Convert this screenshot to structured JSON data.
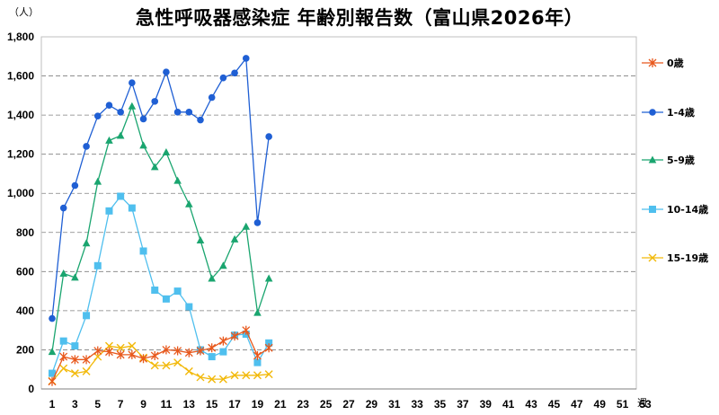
{
  "chart_data": {
    "type": "line",
    "title": "急性呼吸器感染症 年齢別報告数（富山県2026年）",
    "ylabel": "（人）",
    "xlabel": "週",
    "ylim": [
      0,
      1800
    ],
    "yticks": [
      0,
      200,
      400,
      600,
      800,
      1000,
      1200,
      1400,
      1600,
      1800
    ],
    "ytick_labels": [
      "0",
      "200",
      "400",
      "600",
      "800",
      "1,000",
      "1,200",
      "1,400",
      "1,600",
      "1,800"
    ],
    "xlim": [
      1,
      53
    ],
    "xticks": [
      1,
      3,
      5,
      7,
      9,
      11,
      13,
      15,
      17,
      19,
      21,
      23,
      25,
      27,
      29,
      31,
      33,
      35,
      37,
      39,
      41,
      43,
      45,
      47,
      49,
      51,
      53
    ],
    "xtick_labels": [
      "1",
      "3",
      "5",
      "7",
      "9",
      "11",
      "13",
      "15",
      "17",
      "19",
      "21",
      "23",
      "25",
      "27",
      "29",
      "31",
      "33",
      "35",
      "37",
      "39",
      "41",
      "43",
      "45",
      "47",
      "49",
      "51",
      "53"
    ],
    "grid": "horizontal dashed",
    "legend_position": "right",
    "series": [
      {
        "name": "0歳",
        "color": "#e8581c",
        "marker": "asterisk",
        "x": [
          1,
          2,
          3,
          4,
          5,
          6,
          7,
          8,
          9,
          10,
          11,
          12,
          13,
          14,
          15,
          16,
          17,
          18,
          19,
          20
        ],
        "values": [
          38,
          165,
          150,
          150,
          195,
          190,
          175,
          175,
          155,
          170,
          200,
          195,
          185,
          195,
          210,
          245,
          270,
          300,
          170,
          210
        ]
      },
      {
        "name": "1-4歳",
        "color": "#1f5fd4",
        "marker": "circle",
        "x": [
          1,
          2,
          3,
          4,
          5,
          6,
          7,
          8,
          9,
          10,
          11,
          12,
          13,
          14,
          15,
          16,
          17,
          18,
          19,
          20
        ],
        "values": [
          360,
          925,
          1040,
          1240,
          1395,
          1450,
          1415,
          1565,
          1380,
          1470,
          1620,
          1415,
          1415,
          1375,
          1490,
          1590,
          1615,
          1690,
          850,
          1290
        ]
      },
      {
        "name": "5-9歳",
        "color": "#1aa56f",
        "marker": "triangle",
        "x": [
          1,
          2,
          3,
          4,
          5,
          6,
          7,
          8,
          9,
          10,
          11,
          12,
          13,
          14,
          15,
          16,
          17,
          18,
          19,
          20
        ],
        "values": [
          190,
          590,
          570,
          745,
          1060,
          1270,
          1295,
          1445,
          1245,
          1135,
          1210,
          1065,
          945,
          760,
          565,
          630,
          765,
          830,
          390,
          565
        ]
      },
      {
        "name": "10-14歳",
        "color": "#4fbfee",
        "marker": "square",
        "x": [
          1,
          2,
          3,
          4,
          5,
          6,
          7,
          8,
          9,
          10,
          11,
          12,
          13,
          14,
          15,
          16,
          17,
          18,
          19,
          20
        ],
        "values": [
          80,
          245,
          220,
          375,
          630,
          910,
          985,
          925,
          705,
          505,
          460,
          500,
          420,
          200,
          165,
          190,
          275,
          280,
          135,
          235
        ]
      },
      {
        "name": "15-19歳",
        "color": "#f2b90a",
        "marker": "x",
        "x": [
          1,
          2,
          3,
          4,
          5,
          6,
          7,
          8,
          9,
          10,
          11,
          12,
          13,
          14,
          15,
          16,
          17,
          18,
          19,
          20
        ],
        "values": [
          40,
          105,
          80,
          90,
          165,
          220,
          210,
          220,
          160,
          120,
          120,
          135,
          90,
          60,
          50,
          50,
          70,
          70,
          70,
          75
        ]
      }
    ]
  }
}
